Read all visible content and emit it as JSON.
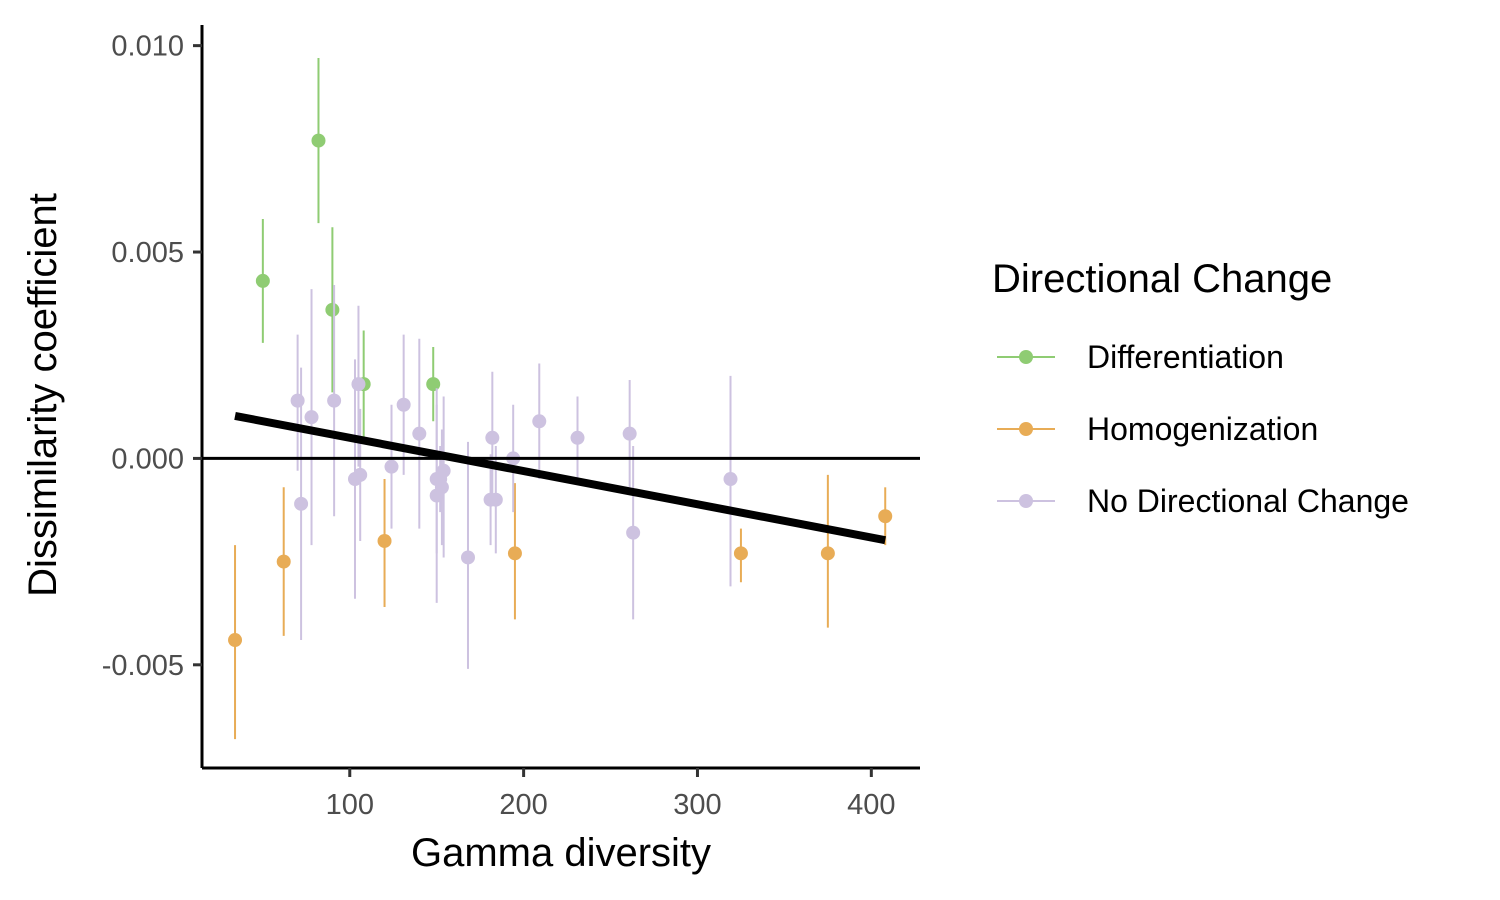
{
  "chart_data": {
    "type": "scatter",
    "title": "",
    "xlabel": "Gamma diversity",
    "ylabel": "Dissimilarity coefficient",
    "xlim": [
      15,
      428
    ],
    "ylim": [
      -0.0075,
      0.0105
    ],
    "x_ticks": [
      100,
      200,
      300,
      400
    ],
    "y_ticks": [
      -0.005,
      0.0,
      0.005,
      0.01
    ],
    "x_tick_labels": [
      "100",
      "200",
      "300",
      "400"
    ],
    "y_tick_labels": [
      "-0.005",
      "0.000",
      "0.005",
      "0.010"
    ],
    "grid": false,
    "hline": 0,
    "legend": {
      "title": "Directional Change",
      "position": "right"
    },
    "trend_line": {
      "x": [
        34,
        408
      ],
      "y": [
        0.00103,
        -0.00198
      ],
      "color": "#000000"
    },
    "series": [
      {
        "name": "Differentiation",
        "color": "#8fcc73",
        "points": [
          {
            "x": 50,
            "y": 0.0043,
            "lo": 0.0028,
            "hi": 0.0058
          },
          {
            "x": 82,
            "y": 0.0077,
            "lo": 0.0057,
            "hi": 0.0097
          },
          {
            "x": 90,
            "y": 0.0036,
            "lo": 0.0016,
            "hi": 0.0056
          },
          {
            "x": 108,
            "y": 0.0018,
            "lo": 0.0005,
            "hi": 0.0031
          },
          {
            "x": 148,
            "y": 0.0018,
            "lo": 0.0009,
            "hi": 0.0027
          }
        ]
      },
      {
        "name": "Homogenization",
        "color": "#e8ac56",
        "points": [
          {
            "x": 34,
            "y": -0.0044,
            "lo": -0.0068,
            "hi": -0.0021
          },
          {
            "x": 62,
            "y": -0.0025,
            "lo": -0.0043,
            "hi": -0.0007
          },
          {
            "x": 120,
            "y": -0.002,
            "lo": -0.0036,
            "hi": -0.0005
          },
          {
            "x": 195,
            "y": -0.0023,
            "lo": -0.0039,
            "hi": -0.0006
          },
          {
            "x": 325,
            "y": -0.0023,
            "lo": -0.003,
            "hi": -0.0017
          },
          {
            "x": 375,
            "y": -0.0023,
            "lo": -0.0041,
            "hi": -0.0004
          },
          {
            "x": 408,
            "y": -0.0014,
            "lo": -0.0021,
            "hi": -0.0007
          }
        ]
      },
      {
        "name": "No Directional Change",
        "color": "#cdc2e0",
        "points": [
          {
            "x": 70,
            "y": 0.0014,
            "lo": -0.0003,
            "hi": 0.003
          },
          {
            "x": 72,
            "y": -0.0011,
            "lo": -0.0044,
            "hi": 0.0022
          },
          {
            "x": 78,
            "y": 0.001,
            "lo": -0.0021,
            "hi": 0.0041
          },
          {
            "x": 91,
            "y": 0.0014,
            "lo": -0.0014,
            "hi": 0.0042
          },
          {
            "x": 103,
            "y": -0.0005,
            "lo": -0.0034,
            "hi": 0.0024
          },
          {
            "x": 105,
            "y": 0.0018,
            "lo": -0.0002,
            "hi": 0.0037
          },
          {
            "x": 106,
            "y": -0.0004,
            "lo": -0.002,
            "hi": 0.0012
          },
          {
            "x": 124,
            "y": -0.0002,
            "lo": -0.0017,
            "hi": 0.0013
          },
          {
            "x": 131,
            "y": 0.0013,
            "lo": -0.0004,
            "hi": 0.003
          },
          {
            "x": 140,
            "y": 0.0006,
            "lo": -0.0017,
            "hi": 0.0029
          },
          {
            "x": 150,
            "y": -0.0009,
            "lo": -0.0035,
            "hi": 0.0017
          },
          {
            "x": 150,
            "y": -0.0005,
            "lo": -0.0023,
            "hi": 0.0013
          },
          {
            "x": 152,
            "y": -0.0005,
            "lo": -0.0013,
            "hi": 0.0003
          },
          {
            "x": 153,
            "y": -0.0007,
            "lo": -0.0021,
            "hi": 0.0007
          },
          {
            "x": 154,
            "y": -0.0003,
            "lo": -0.0024,
            "hi": 0.0015
          },
          {
            "x": 168,
            "y": -0.0024,
            "lo": -0.0051,
            "hi": 0.0004
          },
          {
            "x": 181,
            "y": -0.001,
            "lo": -0.0021,
            "hi": 0.0001
          },
          {
            "x": 182,
            "y": 0.0005,
            "lo": -0.0011,
            "hi": 0.0021
          },
          {
            "x": 184,
            "y": -0.001,
            "lo": -0.0023,
            "hi": 0.0003
          },
          {
            "x": 194,
            "y": 0.0,
            "lo": -0.0013,
            "hi": 0.0013
          },
          {
            "x": 209,
            "y": 0.0009,
            "lo": -0.0005,
            "hi": 0.0023
          },
          {
            "x": 231,
            "y": 0.0005,
            "lo": -0.0005,
            "hi": 0.0015
          },
          {
            "x": 261,
            "y": 0.0006,
            "lo": -0.0007,
            "hi": 0.0019
          },
          {
            "x": 263,
            "y": -0.0018,
            "lo": -0.0039,
            "hi": 0.0003
          },
          {
            "x": 319,
            "y": -0.0005,
            "lo": -0.0031,
            "hi": 0.002
          }
        ]
      }
    ]
  }
}
